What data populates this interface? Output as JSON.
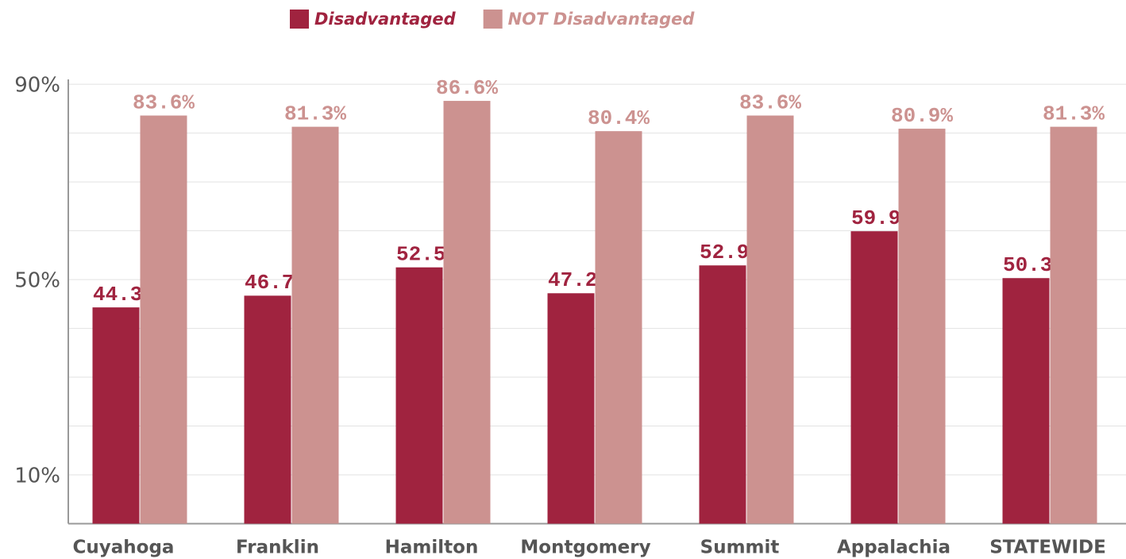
{
  "chart_data": {
    "type": "bar",
    "categories": [
      "Cuyahoga",
      "Franklin",
      "Hamilton",
      "Montgomery",
      "Summit",
      "Appalachia",
      "STATEWIDE"
    ],
    "series": [
      {
        "name": "Disadvantaged",
        "color": "#a0233f",
        "values": [
          44.3,
          46.7,
          52.5,
          47.2,
          52.9,
          59.9,
          50.3
        ],
        "value_labels": [
          "44.3%",
          "46.7%",
          "52.5%",
          "47.2%",
          "52.9%",
          "59.9%",
          "50.3%"
        ]
      },
      {
        "name": "NOT Disadvantaged",
        "color": "#cc9290",
        "values": [
          83.6,
          81.3,
          86.6,
          80.4,
          83.6,
          80.9,
          81.3
        ],
        "value_labels": [
          "83.6%",
          "81.3%",
          "86.6%",
          "80.4%",
          "83.6%",
          "80.9%",
          "81.3%"
        ]
      }
    ],
    "ylim": [
      0,
      91
    ],
    "yticks": [
      {
        "value": 10,
        "label": "10%"
      },
      {
        "value": 50,
        "label": "50%"
      },
      {
        "value": 90,
        "label": "90%"
      }
    ],
    "minor_yticks": [
      20,
      30,
      40,
      60,
      70,
      80
    ],
    "grid": true,
    "legend": "top"
  }
}
